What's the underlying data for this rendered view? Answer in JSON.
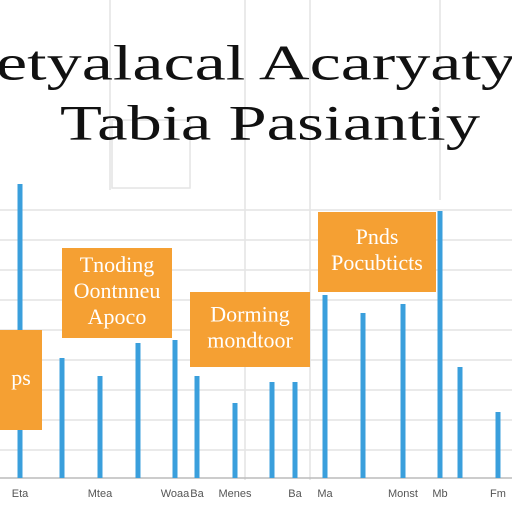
{
  "chart_data": {
    "type": "bar",
    "title": [
      "etyalacal Acaryaty",
      "Tabia Pasiantiy"
    ],
    "categories": [
      "Eta",
      null,
      "Mtea",
      null,
      "Woaa",
      "Ba",
      "Menes",
      null,
      "Ba",
      "Ma",
      null,
      "Monst",
      "Mb",
      null,
      "Fm"
    ],
    "values": [
      98,
      40,
      34,
      45,
      46,
      34,
      25,
      32,
      32,
      61,
      55,
      58,
      89,
      37,
      22
    ],
    "color": "#3a9fdc",
    "ylim": [
      0,
      100
    ],
    "annotations": [
      {
        "lines": [
          "Tnoding",
          "Oontnneu",
          "Apoco"
        ],
        "color": "#f5a033"
      },
      {
        "lines": [
          "Dorming",
          "mondtoor"
        ],
        "color": "#f5a033"
      },
      {
        "lines": [
          "Pnds",
          "Pocubticts"
        ],
        "color": "#f5a033"
      },
      {
        "lines": [
          "ps"
        ],
        "color": "#f5a033"
      }
    ]
  }
}
